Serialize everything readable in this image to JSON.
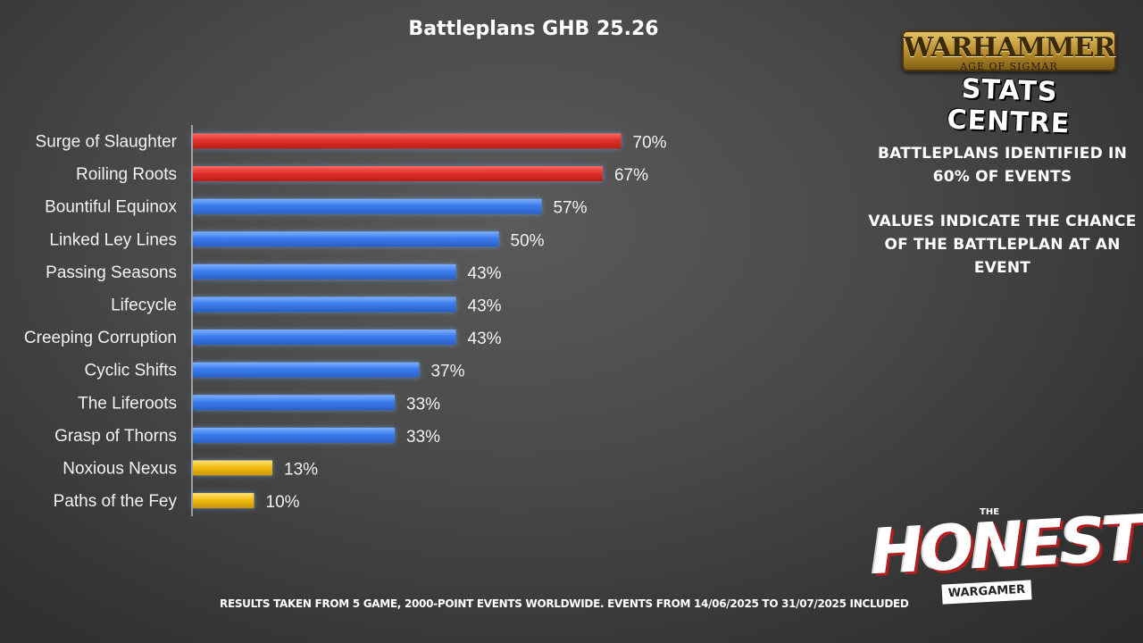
{
  "chart_data": {
    "type": "bar",
    "orientation": "horizontal",
    "title": "Battleplans GHB 25.26",
    "categories": [
      "Surge of Slaughter",
      "Roiling Roots",
      "Bountiful Equinox",
      "Linked Ley Lines",
      "Passing Seasons",
      "Lifecycle",
      "Creeping Corruption",
      "Cyclic Shifts",
      "The Liferoots",
      "Grasp of Thorns",
      "Noxious Nexus",
      "Paths of the Fey"
    ],
    "values": [
      70,
      67,
      57,
      50,
      43,
      43,
      43,
      37,
      33,
      33,
      13,
      10
    ],
    "value_labels": [
      "70%",
      "67%",
      "57%",
      "50%",
      "43%",
      "43%",
      "43%",
      "37%",
      "33%",
      "33%",
      "13%",
      "10%"
    ],
    "colors": [
      "#e0302a",
      "#e0302a",
      "#3b7ded",
      "#3b7ded",
      "#3b7ded",
      "#3b7ded",
      "#3b7ded",
      "#3b7ded",
      "#3b7ded",
      "#3b7ded",
      "#f2bb0e",
      "#f2bb0e"
    ],
    "xlim": [
      0,
      100
    ],
    "grid": false,
    "legend": "none"
  },
  "info": {
    "identified": "BATTLEPLANS IDENTIFIED IN 60% OF EVENTS",
    "values_note": "VALUES INDICATE THE CHANCE OF THE BATTLEPLAN AT AN EVENT"
  },
  "footer": "RESULTS TAKEN FROM 5 GAME, 2000-POINT EVENTS WORLDWIDE. EVENTS FROM 14/06/2025 TO 31/07/2025 INCLUDED",
  "logos": {
    "warhammer": "WARHAMMER",
    "warhammer_sub": "AGE OF SIGMAR",
    "stats_centre": "STATS CENTRE",
    "honest_the": "THE",
    "honest": "HONEST",
    "wargamer": "WARGAMER"
  }
}
